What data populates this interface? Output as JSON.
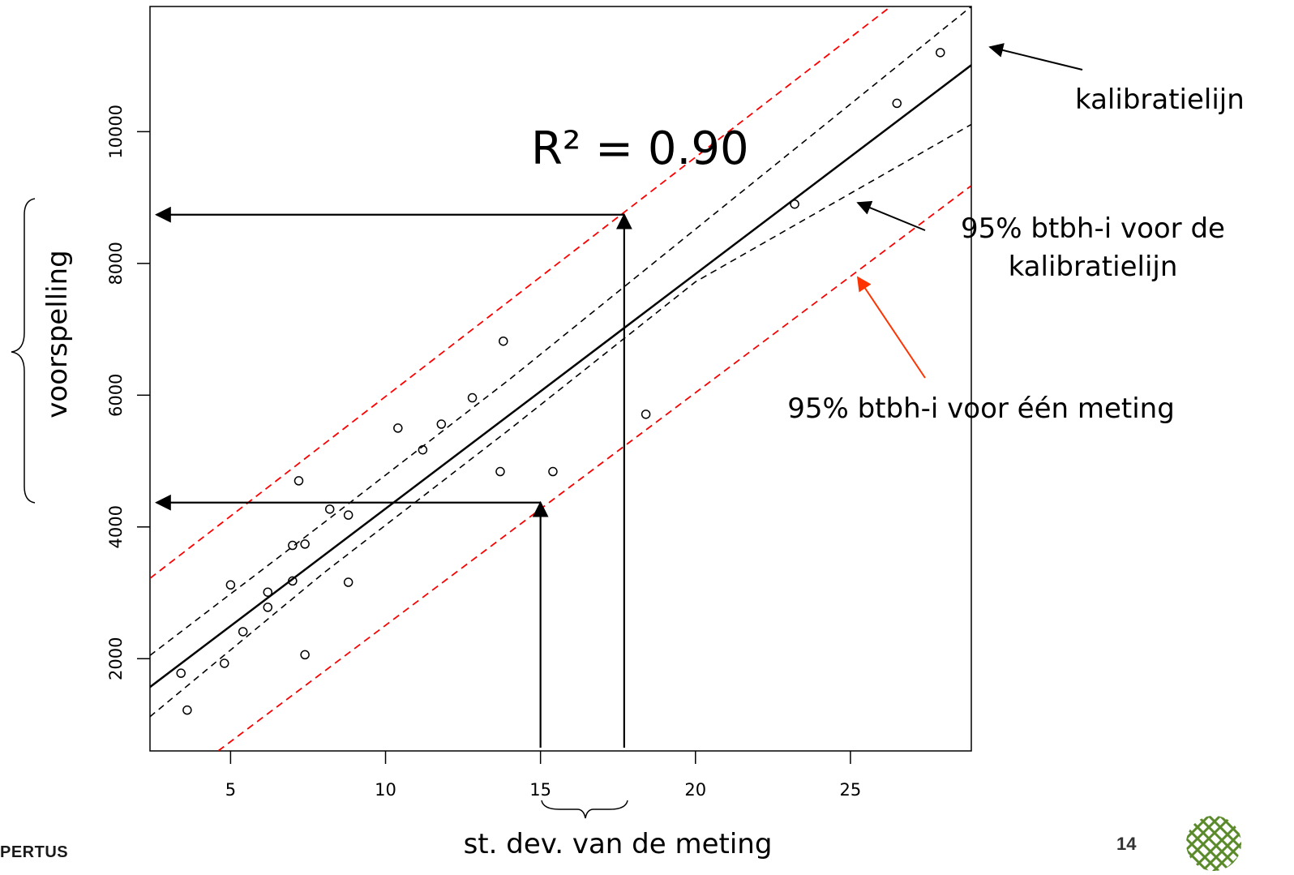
{
  "chart_data": {
    "type": "scatter",
    "xlabel": "st. dev. van de meting",
    "ylabel": "voorspelling",
    "xlim": [
      2.4,
      28.9
    ],
    "ylim": [
      600,
      11900
    ],
    "xticks": [
      5,
      10,
      15,
      20,
      25
    ],
    "yticks": [
      2000,
      4000,
      6000,
      8000,
      10000
    ],
    "grid": false,
    "r_squared_label": "R² = 0.90",
    "points": [
      {
        "x": 3.4,
        "y": 1780
      },
      {
        "x": 3.6,
        "y": 1220
      },
      {
        "x": 4.8,
        "y": 1930
      },
      {
        "x": 5.0,
        "y": 3120
      },
      {
        "x": 5.4,
        "y": 2410
      },
      {
        "x": 6.2,
        "y": 3010
      },
      {
        "x": 6.2,
        "y": 2780
      },
      {
        "x": 7.0,
        "y": 3720
      },
      {
        "x": 7.0,
        "y": 3180
      },
      {
        "x": 7.2,
        "y": 4700
      },
      {
        "x": 7.4,
        "y": 3740
      },
      {
        "x": 7.4,
        "y": 2060
      },
      {
        "x": 8.2,
        "y": 4270
      },
      {
        "x": 8.8,
        "y": 4180
      },
      {
        "x": 8.8,
        "y": 3160
      },
      {
        "x": 10.4,
        "y": 5500
      },
      {
        "x": 11.2,
        "y": 5170
      },
      {
        "x": 11.8,
        "y": 5560
      },
      {
        "x": 12.8,
        "y": 5960
      },
      {
        "x": 13.7,
        "y": 4840
      },
      {
        "x": 13.8,
        "y": 6820
      },
      {
        "x": 15.4,
        "y": 4840
      },
      {
        "x": 18.4,
        "y": 5710
      },
      {
        "x": 23.2,
        "y": 8900
      },
      {
        "x": 26.5,
        "y": 10430
      },
      {
        "x": 27.9,
        "y": 11200
      }
    ],
    "calibration_line": {
      "x": [
        2.4,
        28.9
      ],
      "y": [
        1570,
        11010
      ]
    },
    "confidence_band_upper": {
      "x": [
        2.4,
        8,
        14,
        20,
        28.9
      ],
      "y": [
        2050,
        4060,
        6240,
        8520,
        11900
      ]
    },
    "confidence_band_lower": {
      "x": [
        2.4,
        8,
        14,
        20,
        28.9
      ],
      "y": [
        1120,
        3300,
        5480,
        7720,
        10110
      ]
    },
    "prediction_band_upper": {
      "x": [
        2.4,
        26.3
      ],
      "y": [
        3220,
        11900
      ]
    },
    "prediction_band_lower": {
      "x": [
        4.6,
        28.9
      ],
      "y": [
        600,
        9180
      ]
    },
    "readout_arrows": [
      {
        "x": 15.0,
        "y": 4370
      },
      {
        "x": 17.7,
        "y": 8740
      }
    ],
    "annotations": {
      "calibration": "kalibratielijn",
      "ci_line1": "95% btbh-i voor de",
      "ci_line2": "kalibratielijn",
      "pi": "95% btbh-i voor één meting"
    },
    "colors": {
      "prediction_band": "#ff0000",
      "pi_arrow": "#ff3300",
      "default": "#000000"
    }
  },
  "footer": {
    "logo_text": "PERTUS",
    "page_number": "14"
  }
}
